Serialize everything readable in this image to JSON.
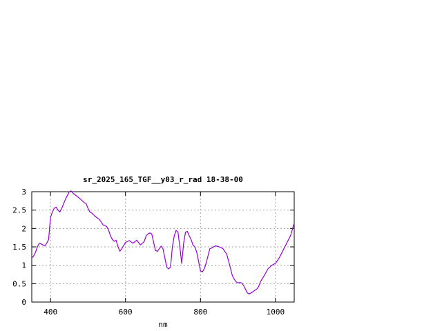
{
  "chart_data": {
    "type": "line",
    "title": "sr_2025_165_TGF__y03_r_rad 18-38-00",
    "xlabel": "nm",
    "ylabel": "",
    "xlim": [
      350,
      1050
    ],
    "ylim": [
      0,
      3
    ],
    "xticks": [
      400,
      600,
      800,
      1000
    ],
    "yticks": [
      0,
      0.5,
      1,
      1.5,
      2,
      2.5,
      3
    ],
    "ytick_labels": [
      "0",
      "0.5",
      "1",
      "1.5",
      "2",
      "2.5",
      "3"
    ],
    "grid": true,
    "legend": "none",
    "line_color": "#9400d3",
    "series": [
      {
        "x": [
          350,
          355,
          360,
          365,
          370,
          375,
          380,
          385,
          390,
          395,
          400,
          405,
          410,
          415,
          420,
          425,
          430,
          440,
          450,
          455,
          460,
          470,
          480,
          485,
          490,
          495,
          500,
          505,
          510,
          520,
          530,
          535,
          540,
          545,
          550,
          555,
          560,
          565,
          570,
          575,
          580,
          585,
          590,
          600,
          610,
          620,
          630,
          640,
          650,
          655,
          660,
          665,
          670,
          680,
          685,
          690,
          695,
          700,
          705,
          710,
          715,
          720,
          725,
          730,
          735,
          740,
          745,
          750,
          755,
          760,
          765,
          770,
          775,
          780,
          785,
          790,
          795,
          800,
          805,
          810,
          815,
          820,
          825,
          830,
          835,
          840,
          850,
          855,
          860,
          870,
          880,
          885,
          890,
          895,
          900,
          905,
          910,
          915,
          920,
          925,
          930,
          935,
          940,
          945,
          950,
          955,
          960,
          970,
          980,
          990,
          1000,
          1010,
          1020,
          1030,
          1040,
          1050
        ],
        "y": [
          1.2,
          1.25,
          1.35,
          1.5,
          1.6,
          1.58,
          1.55,
          1.53,
          1.6,
          1.7,
          2.3,
          2.45,
          2.55,
          2.58,
          2.5,
          2.45,
          2.55,
          2.8,
          3.0,
          3.02,
          2.96,
          2.88,
          2.8,
          2.75,
          2.7,
          2.68,
          2.55,
          2.45,
          2.42,
          2.32,
          2.25,
          2.18,
          2.1,
          2.08,
          2.05,
          1.95,
          1.8,
          1.7,
          1.65,
          1.68,
          1.5,
          1.38,
          1.45,
          1.62,
          1.67,
          1.6,
          1.68,
          1.55,
          1.65,
          1.8,
          1.85,
          1.88,
          1.85,
          1.4,
          1.38,
          1.45,
          1.52,
          1.45,
          1.2,
          0.95,
          0.9,
          0.95,
          1.5,
          1.8,
          1.95,
          1.9,
          1.5,
          1.05,
          1.6,
          1.9,
          1.92,
          1.8,
          1.7,
          1.55,
          1.5,
          1.35,
          1.1,
          0.85,
          0.82,
          0.9,
          1.05,
          1.25,
          1.45,
          1.47,
          1.5,
          1.53,
          1.5,
          1.48,
          1.45,
          1.3,
          0.92,
          0.72,
          0.62,
          0.55,
          0.52,
          0.53,
          0.52,
          0.45,
          0.35,
          0.25,
          0.22,
          0.25,
          0.28,
          0.32,
          0.35,
          0.42,
          0.55,
          0.72,
          0.9,
          1.0,
          1.05,
          1.2,
          1.4,
          1.6,
          1.8,
          2.15
        ]
      }
    ]
  }
}
